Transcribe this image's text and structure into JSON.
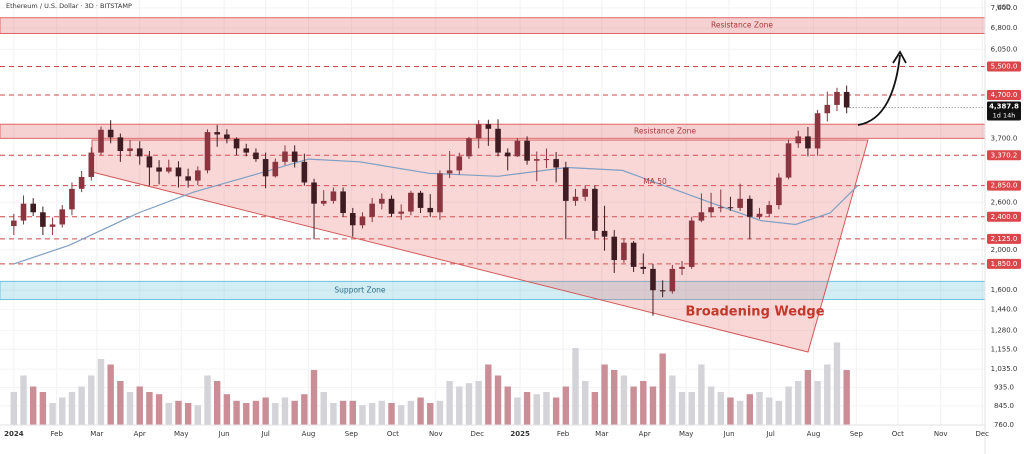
{
  "chart_data": {
    "type": "candlestick",
    "title": "Ethereum / U.S. Dollar · 3D · BITSTAMP",
    "currency": "USD",
    "log_scale": true,
    "grid": true,
    "up_color": "#8a3540",
    "down_color": "#3e1c21",
    "volume_up_color": "#d3d3d8",
    "volume_down_color": "#c98e96",
    "xlim": [
      -10,
      702
    ],
    "xticks": [
      {
        "value": 0,
        "label": "2024"
      },
      {
        "value": 31,
        "label": "Feb"
      },
      {
        "value": 60,
        "label": "Mar"
      },
      {
        "value": 91,
        "label": "Apr"
      },
      {
        "value": 121,
        "label": "May"
      },
      {
        "value": 152,
        "label": "Jun"
      },
      {
        "value": 182,
        "label": "Jul"
      },
      {
        "value": 213,
        "label": "Aug"
      },
      {
        "value": 244,
        "label": "Sep"
      },
      {
        "value": 274,
        "label": "Oct"
      },
      {
        "value": 305,
        "label": "Nov"
      },
      {
        "value": 335,
        "label": "Dec"
      },
      {
        "value": 366,
        "label": "2025"
      },
      {
        "value": 397,
        "label": "Feb"
      },
      {
        "value": 425,
        "label": "Mar"
      },
      {
        "value": 456,
        "label": "Apr"
      },
      {
        "value": 486,
        "label": "May"
      },
      {
        "value": 517,
        "label": "Jun"
      },
      {
        "value": 547,
        "label": "Jul"
      },
      {
        "value": 578,
        "label": "Aug"
      },
      {
        "value": 609,
        "label": "Sep"
      },
      {
        "value": 639,
        "label": "Oct"
      },
      {
        "value": 670,
        "label": "Nov"
      },
      {
        "value": 700,
        "label": "Dec"
      }
    ],
    "ylim": [
      700,
      7940
    ],
    "yticks": [
      {
        "value": 7600,
        "label": "7,600.0"
      },
      {
        "value": 6800,
        "label": "6,800.0"
      },
      {
        "value": 6050,
        "label": "6,050.0"
      },
      {
        "value": 5500,
        "label": "5,500.0"
      },
      {
        "value": 4700,
        "label": "4,700.0"
      },
      {
        "value": 3700,
        "label": "3,700.0"
      },
      {
        "value": 3370,
        "label": "3,370.2"
      },
      {
        "value": 2850,
        "label": "2,850.0"
      },
      {
        "value": 2600,
        "label": "2,600.0"
      },
      {
        "value": 2400,
        "label": "2,400.0"
      },
      {
        "value": 2125,
        "label": "2,125.0"
      },
      {
        "value": 2000,
        "label": "2,000.0"
      },
      {
        "value": 1850,
        "label": "1,850.0"
      },
      {
        "value": 1600,
        "label": "1,600.0"
      },
      {
        "value": 1440,
        "label": "1,440.0"
      },
      {
        "value": 1280,
        "label": "1,280.0"
      },
      {
        "value": 1155,
        "label": "1,155.0"
      },
      {
        "value": 1035,
        "label": "1,035.0"
      },
      {
        "value": 935,
        "label": "935.0"
      },
      {
        "value": 845,
        "label": "845.0"
      },
      {
        "value": 760,
        "label": "760.0"
      }
    ],
    "levels": [
      5500,
      4700,
      3370,
      2850,
      2400,
      2125,
      1850
    ],
    "zones": [
      {
        "label": "Resistance Zone",
        "from": 6600,
        "to": 7200,
        "color": "#e06666"
      },
      {
        "label": "Resistance Zone",
        "from": 3700,
        "to": 4000,
        "color": "#e06666"
      },
      {
        "label": "Support Zone",
        "from": 1520,
        "to": 1680,
        "color": "#6cc4dc"
      }
    ],
    "wedge_label": "Broadening Wedge",
    "last_price_label": "4,387.8",
    "countdown": "1d 14h",
    "x": [
      0,
      7,
      14,
      21,
      28,
      35,
      42,
      49,
      56,
      63,
      70,
      77,
      84,
      91,
      98,
      105,
      112,
      119,
      126,
      133,
      140,
      147,
      154,
      161,
      168,
      175,
      182,
      189,
      196,
      203,
      210,
      217,
      224,
      231,
      238,
      245,
      252,
      259,
      266,
      273,
      280,
      287,
      294,
      301,
      308,
      315,
      322,
      329,
      336,
      343,
      350,
      357,
      364,
      371,
      378,
      385,
      392,
      399,
      406,
      413,
      420,
      427,
      434,
      441,
      448,
      455,
      462,
      469,
      476,
      483,
      490,
      497,
      504,
      511,
      518,
      525,
      532,
      539,
      546,
      553,
      560,
      567,
      574,
      581,
      588,
      595,
      602
    ],
    "open": [
      2280,
      2350,
      2580,
      2460,
      2270,
      2300,
      2500,
      2800,
      2990,
      3420,
      3880,
      3720,
      3450,
      3500,
      3350,
      3150,
      3080,
      3150,
      3000,
      2930,
      3100,
      3830,
      3780,
      3690,
      3500,
      3420,
      3300,
      3000,
      3250,
      3440,
      3250,
      2900,
      2580,
      2620,
      2760,
      2450,
      2290,
      2400,
      2580,
      2650,
      2440,
      2470,
      2740,
      2520,
      2460,
      3050,
      3100,
      3350,
      3700,
      4000,
      3900,
      3420,
      3350,
      3650,
      3270,
      3300,
      3300,
      3150,
      2620,
      2680,
      2800,
      2220,
      2150,
      1890,
      2080,
      1820,
      1800,
      1600,
      1590,
      1800,
      1820,
      2350,
      2460,
      2530,
      2530,
      2520,
      2650,
      2400,
      2440,
      2560,
      2980,
      3600,
      3740,
      3500,
      4250,
      4450,
      4780
    ],
    "high": [
      2440,
      2700,
      2660,
      2540,
      2390,
      2560,
      2900,
      3090,
      3520,
      3950,
      4090,
      3800,
      3670,
      3640,
      3450,
      3280,
      3290,
      3260,
      3130,
      3170,
      3890,
      3980,
      3890,
      3720,
      3590,
      3500,
      3420,
      3310,
      3560,
      3560,
      3400,
      2960,
      2780,
      2820,
      2820,
      2520,
      2460,
      2660,
      2730,
      2700,
      2570,
      2770,
      2770,
      2720,
      3100,
      3450,
      3420,
      3730,
      4090,
      4100,
      4110,
      3500,
      3700,
      3740,
      3440,
      3500,
      3430,
      3250,
      2800,
      2850,
      2850,
      2550,
      2230,
      2130,
      2100,
      1960,
      1850,
      1690,
      1840,
      1880,
      2400,
      2730,
      2740,
      2790,
      2680,
      2880,
      2700,
      2520,
      2620,
      3050,
      3680,
      3860,
      3940,
      4330,
      4790,
      4890,
      4950
    ],
    "low": [
      2170,
      2300,
      2410,
      2170,
      2170,
      2260,
      2420,
      2750,
      2930,
      3370,
      3600,
      3250,
      3350,
      3200,
      2850,
      2870,
      3050,
      2820,
      2820,
      2860,
      3050,
      3530,
      3600,
      3370,
      3350,
      3250,
      2810,
      2980,
      3190,
      3150,
      2850,
      2120,
      2550,
      2580,
      2400,
      2150,
      2250,
      2330,
      2500,
      2400,
      2360,
      2420,
      2450,
      2400,
      2360,
      2970,
      3030,
      3300,
      3500,
      3550,
      3350,
      3100,
      3340,
      3200,
      2920,
      3140,
      2900,
      2120,
      2550,
      2620,
      2130,
      1990,
      1760,
      1860,
      1770,
      1750,
      1390,
      1540,
      1570,
      1740,
      1800,
      2330,
      2390,
      2460,
      2480,
      2480,
      2120,
      2370,
      2400,
      2500,
      2950,
      3510,
      3350,
      3360,
      4060,
      4300,
      4250
    ],
    "close": [
      2350,
      2580,
      2460,
      2270,
      2300,
      2500,
      2800,
      2990,
      3420,
      3880,
      3720,
      3450,
      3500,
      3350,
      3150,
      3080,
      3150,
      3000,
      2930,
      3100,
      3830,
      3780,
      3690,
      3500,
      3420,
      3300,
      3000,
      3250,
      3440,
      3250,
      2900,
      2580,
      2620,
      2760,
      2450,
      2290,
      2400,
      2580,
      2650,
      2440,
      2470,
      2740,
      2520,
      2460,
      3050,
      3100,
      3350,
      3700,
      4000,
      3900,
      3420,
      3350,
      3650,
      3270,
      3300,
      3300,
      3150,
      2620,
      2680,
      2800,
      2220,
      2150,
      1890,
      2080,
      1820,
      1800,
      1600,
      1590,
      1800,
      1820,
      2350,
      2460,
      2530,
      2530,
      2520,
      2650,
      2400,
      2440,
      2560,
      2980,
      3600,
      3740,
      3500,
      4250,
      4450,
      4780,
      4387.8
    ],
    "volume": [
      30,
      45,
      35,
      30,
      20,
      25,
      30,
      35,
      45,
      60,
      55,
      40,
      30,
      35,
      30,
      28,
      20,
      22,
      20,
      18,
      45,
      40,
      28,
      22,
      20,
      22,
      25,
      20,
      25,
      22,
      28,
      50,
      30,
      20,
      22,
      22,
      18,
      20,
      22,
      20,
      18,
      22,
      25,
      20,
      22,
      40,
      35,
      38,
      40,
      55,
      45,
      35,
      25,
      30,
      28,
      30,
      25,
      35,
      70,
      40,
      30,
      55,
      50,
      45,
      35,
      40,
      35,
      65,
      45,
      30,
      30,
      55,
      35,
      30,
      25,
      22,
      28,
      30,
      25,
      22,
      35,
      40,
      50,
      40,
      55,
      75,
      50
    ],
    "ma": {
      "name": "MA 50",
      "color": "#7f9fc4",
      "x": [
        0,
        40,
        90,
        130,
        170,
        213,
        250,
        300,
        350,
        400,
        440,
        470,
        510,
        540,
        565,
        590,
        610
      ],
      "values": [
        1850,
        2050,
        2450,
        2750,
        3000,
        3300,
        3250,
        3050,
        3000,
        3150,
        3100,
        2850,
        2550,
        2350,
        2300,
        2450,
        2850
      ]
    }
  }
}
